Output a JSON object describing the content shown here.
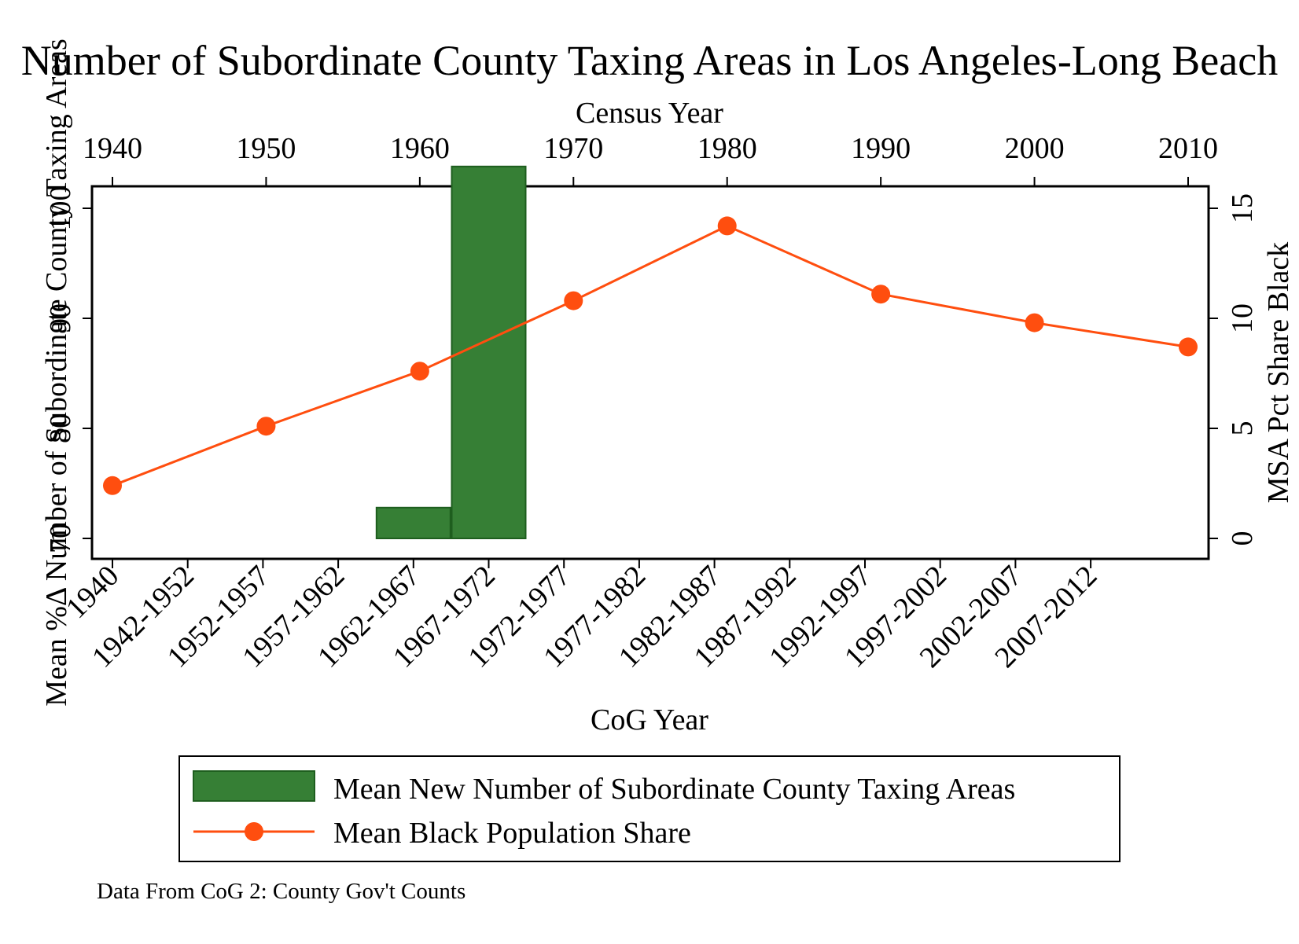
{
  "chart_data": {
    "type": "bar",
    "title": "Number of Subordinate County Taxing Areas in Los Angeles-Long Beach",
    "top_axis": {
      "label": "Census Year",
      "ticks": [
        "1940",
        "1950",
        "1960",
        "1970",
        "1980",
        "1990",
        "2000",
        "2010"
      ],
      "range": [
        1940,
        2010
      ]
    },
    "x_axis": {
      "label": "CoG Year",
      "categories": [
        "1940",
        "1942-1952",
        "1952-1957",
        "1957-1962",
        "1962-1967",
        "1967-1972",
        "1972-1977",
        "1977-1982",
        "1982-1987",
        "1987-1992",
        "1992-1997",
        "1997-2002",
        "2002-2007",
        "2007-2012"
      ]
    },
    "left_axis": {
      "label": "Mean %Δ Number of Subordinate County Taxing Areas",
      "ticks": [
        "70",
        "80",
        "90",
        "100"
      ],
      "range": [
        70,
        100
      ]
    },
    "right_axis": {
      "label": "MSA Pct Share Black",
      "ticks": [
        "0",
        "5",
        "10",
        "15"
      ],
      "range": [
        0,
        15
      ]
    },
    "series": [
      {
        "name": "Mean New Number of Subordinate County Taxing Areas",
        "type": "bar",
        "color": "#367f35",
        "edge_color": "#1e5e1e",
        "bars": [
          {
            "category": "1962-1967",
            "value": 72.8
          },
          {
            "category": "1967-1972",
            "value": 103.8
          }
        ]
      },
      {
        "name": "Mean Black Population Share",
        "type": "line",
        "color": "#ff4e0f",
        "x": [
          1940,
          1950,
          1960,
          1970,
          1980,
          1990,
          2000,
          2010
        ],
        "values": [
          2.4,
          5.1,
          7.6,
          10.8,
          14.2,
          11.1,
          9.8,
          8.7
        ]
      }
    ],
    "legend": {
      "position": "bottom",
      "items": [
        "Mean New Number of Subordinate County Taxing Areas",
        "Mean Black Population Share"
      ]
    },
    "note": "Data From CoG 2: County Gov't Counts"
  }
}
